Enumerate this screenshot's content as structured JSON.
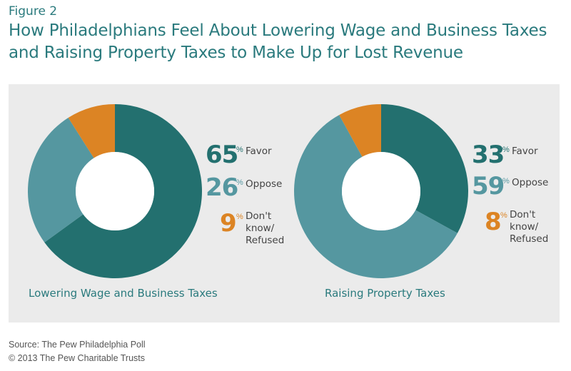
{
  "figure_label": "Figure 2",
  "title": "How Philadelphians Feel About Lowering Wage and Business Taxes and Raising Property Taxes to Make Up for Lost Revenue",
  "source": "Source: The Pew Philadelphia Poll",
  "copyright": "© 2013 The Pew Charitable Trusts",
  "colors": {
    "favor": "#23706f",
    "oppose": "#5597a0",
    "dont_know": "#dc8424",
    "panel": "#ebebeb"
  },
  "chart_data": [
    {
      "type": "pie",
      "title": "Lowering Wage and Business Taxes",
      "unit": "%",
      "categories": [
        "Favor",
        "Oppose",
        "Don't know/ Refused"
      ],
      "values": [
        65,
        26,
        9
      ],
      "legend_lines": [
        [
          "Favor"
        ],
        [
          "Oppose"
        ],
        [
          "Don't",
          "know/",
          "Refused"
        ]
      ],
      "legend": "right"
    },
    {
      "type": "pie",
      "title": "Raising Property Taxes",
      "unit": "%",
      "categories": [
        "Favor",
        "Oppose",
        "Don't know/ Refused"
      ],
      "values": [
        33,
        59,
        8
      ],
      "legend_lines": [
        [
          "Favor"
        ],
        [
          "Oppose"
        ],
        [
          "Don't",
          "know/",
          "Refused"
        ]
      ],
      "legend": "right"
    }
  ]
}
